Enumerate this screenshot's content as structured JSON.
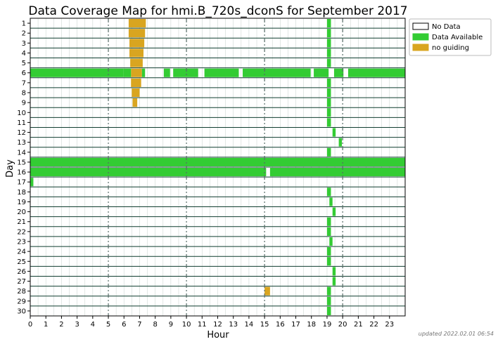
{
  "chart_data": {
    "type": "heatmap",
    "title": "Data Coverage Map for hmi.B_720s_dconS for September 2017",
    "xlabel": "Hour",
    "ylabel": "Day",
    "xlim": [
      0,
      24
    ],
    "x_ticks": [
      "0",
      "1",
      "2",
      "3",
      "4",
      "5",
      "6",
      "7",
      "8",
      "9",
      "10",
      "11",
      "12",
      "13",
      "14",
      "15",
      "16",
      "17",
      "18",
      "19",
      "20",
      "21",
      "22",
      "23"
    ],
    "days": [
      "1",
      "2",
      "3",
      "4",
      "5",
      "6",
      "7",
      "8",
      "9",
      "10",
      "11",
      "12",
      "13",
      "14",
      "15",
      "16",
      "17",
      "18",
      "19",
      "20",
      "21",
      "22",
      "23",
      "24",
      "25",
      "26",
      "27",
      "28",
      "29",
      "30"
    ],
    "major_dashed_hours": [
      5,
      10,
      15,
      20
    ],
    "legend": {
      "placement": "right-top",
      "items": [
        {
          "label": "No Data",
          "color": "#ffffff"
        },
        {
          "label": "Data Available",
          "color": "#33cc33"
        },
        {
          "label": "no guiding",
          "color": "#d9a520"
        }
      ]
    },
    "colors": {
      "available": "#33cc33",
      "no_guiding": "#d9a520",
      "row_line": "#0f3d2f"
    },
    "intervals": [
      {
        "day": 1,
        "type": "no_guiding",
        "start": 6.3,
        "end": 7.4
      },
      {
        "day": 1,
        "type": "available",
        "start": 19.0,
        "end": 19.25
      },
      {
        "day": 2,
        "type": "no_guiding",
        "start": 6.3,
        "end": 7.35
      },
      {
        "day": 2,
        "type": "available",
        "start": 19.0,
        "end": 19.25
      },
      {
        "day": 3,
        "type": "no_guiding",
        "start": 6.35,
        "end": 7.3
      },
      {
        "day": 3,
        "type": "available",
        "start": 19.0,
        "end": 19.25
      },
      {
        "day": 4,
        "type": "no_guiding",
        "start": 6.35,
        "end": 7.25
      },
      {
        "day": 4,
        "type": "available",
        "start": 19.0,
        "end": 19.25
      },
      {
        "day": 5,
        "type": "no_guiding",
        "start": 6.4,
        "end": 7.2
      },
      {
        "day": 5,
        "type": "available",
        "start": 19.0,
        "end": 19.25
      },
      {
        "day": 6,
        "type": "available",
        "start": 0.0,
        "end": 5.95
      },
      {
        "day": 6,
        "type": "no_guiding",
        "start": 6.45,
        "end": 7.15
      },
      {
        "day": 6,
        "type": "available",
        "start": 5.95,
        "end": 6.45
      },
      {
        "day": 6,
        "type": "available",
        "start": 7.15,
        "end": 7.35
      },
      {
        "day": 6,
        "type": "available",
        "start": 8.55,
        "end": 8.95
      },
      {
        "day": 6,
        "type": "available",
        "start": 9.15,
        "end": 10.75
      },
      {
        "day": 6,
        "type": "available",
        "start": 11.15,
        "end": 13.35
      },
      {
        "day": 6,
        "type": "available",
        "start": 13.6,
        "end": 17.95
      },
      {
        "day": 6,
        "type": "available",
        "start": 18.15,
        "end": 19.1
      },
      {
        "day": 6,
        "type": "available",
        "start": 19.45,
        "end": 20.05
      },
      {
        "day": 6,
        "type": "available",
        "start": 20.35,
        "end": 24.0
      },
      {
        "day": 7,
        "type": "no_guiding",
        "start": 6.45,
        "end": 7.1
      },
      {
        "day": 7,
        "type": "available",
        "start": 19.0,
        "end": 19.25
      },
      {
        "day": 8,
        "type": "no_guiding",
        "start": 6.5,
        "end": 7.0
      },
      {
        "day": 8,
        "type": "available",
        "start": 19.0,
        "end": 19.25
      },
      {
        "day": 9,
        "type": "no_guiding",
        "start": 6.55,
        "end": 6.85
      },
      {
        "day": 9,
        "type": "available",
        "start": 19.0,
        "end": 19.25
      },
      {
        "day": 10,
        "type": "available",
        "start": 19.0,
        "end": 19.25
      },
      {
        "day": 11,
        "type": "available",
        "start": 19.0,
        "end": 19.25
      },
      {
        "day": 12,
        "type": "available",
        "start": 19.35,
        "end": 19.55
      },
      {
        "day": 13,
        "type": "available",
        "start": 19.75,
        "end": 19.95
      },
      {
        "day": 14,
        "type": "available",
        "start": 19.0,
        "end": 19.25
      },
      {
        "day": 15,
        "type": "available",
        "start": 0.0,
        "end": 24.0
      },
      {
        "day": 16,
        "type": "available",
        "start": 0.0,
        "end": 15.1
      },
      {
        "day": 16,
        "type": "available",
        "start": 15.35,
        "end": 24.0
      },
      {
        "day": 17,
        "type": "available",
        "start": 0.0,
        "end": 0.2
      },
      {
        "day": 18,
        "type": "available",
        "start": 19.0,
        "end": 19.25
      },
      {
        "day": 19,
        "type": "available",
        "start": 19.15,
        "end": 19.35
      },
      {
        "day": 20,
        "type": "available",
        "start": 19.35,
        "end": 19.55
      },
      {
        "day": 21,
        "type": "available",
        "start": 19.0,
        "end": 19.25
      },
      {
        "day": 22,
        "type": "available",
        "start": 19.0,
        "end": 19.25
      },
      {
        "day": 23,
        "type": "available",
        "start": 19.15,
        "end": 19.35
      },
      {
        "day": 24,
        "type": "available",
        "start": 19.0,
        "end": 19.25
      },
      {
        "day": 25,
        "type": "available",
        "start": 19.0,
        "end": 19.25
      },
      {
        "day": 26,
        "type": "available",
        "start": 19.35,
        "end": 19.55
      },
      {
        "day": 27,
        "type": "available",
        "start": 19.35,
        "end": 19.55
      },
      {
        "day": 28,
        "type": "no_guiding",
        "start": 15.0,
        "end": 15.35
      },
      {
        "day": 28,
        "type": "available",
        "start": 19.0,
        "end": 19.25
      },
      {
        "day": 29,
        "type": "available",
        "start": 19.0,
        "end": 19.25
      },
      {
        "day": 30,
        "type": "available",
        "start": 19.0,
        "end": 19.25
      }
    ]
  },
  "footer": {
    "updated": "updated 2022.02.01 06:54"
  }
}
